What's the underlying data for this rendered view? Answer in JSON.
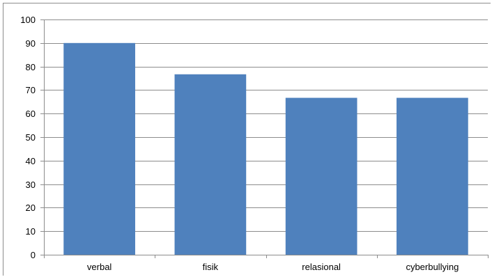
{
  "chart_data": {
    "type": "bar",
    "title": "",
    "xlabel": "",
    "ylabel": "",
    "categories": [
      "verbal",
      "fisik",
      "relasional",
      "cyberbullying"
    ],
    "values": [
      90,
      76.7,
      66.7,
      66.7
    ],
    "ylim": [
      0,
      100
    ],
    "yticks": [
      0,
      10,
      20,
      30,
      40,
      50,
      60,
      70,
      80,
      90,
      100
    ],
    "grid": true,
    "legend": "none",
    "colors": {
      "bar": "#4f81bd",
      "grid": "#8c8c8c",
      "axis": "#8c8c8c",
      "text": "#000000"
    }
  }
}
